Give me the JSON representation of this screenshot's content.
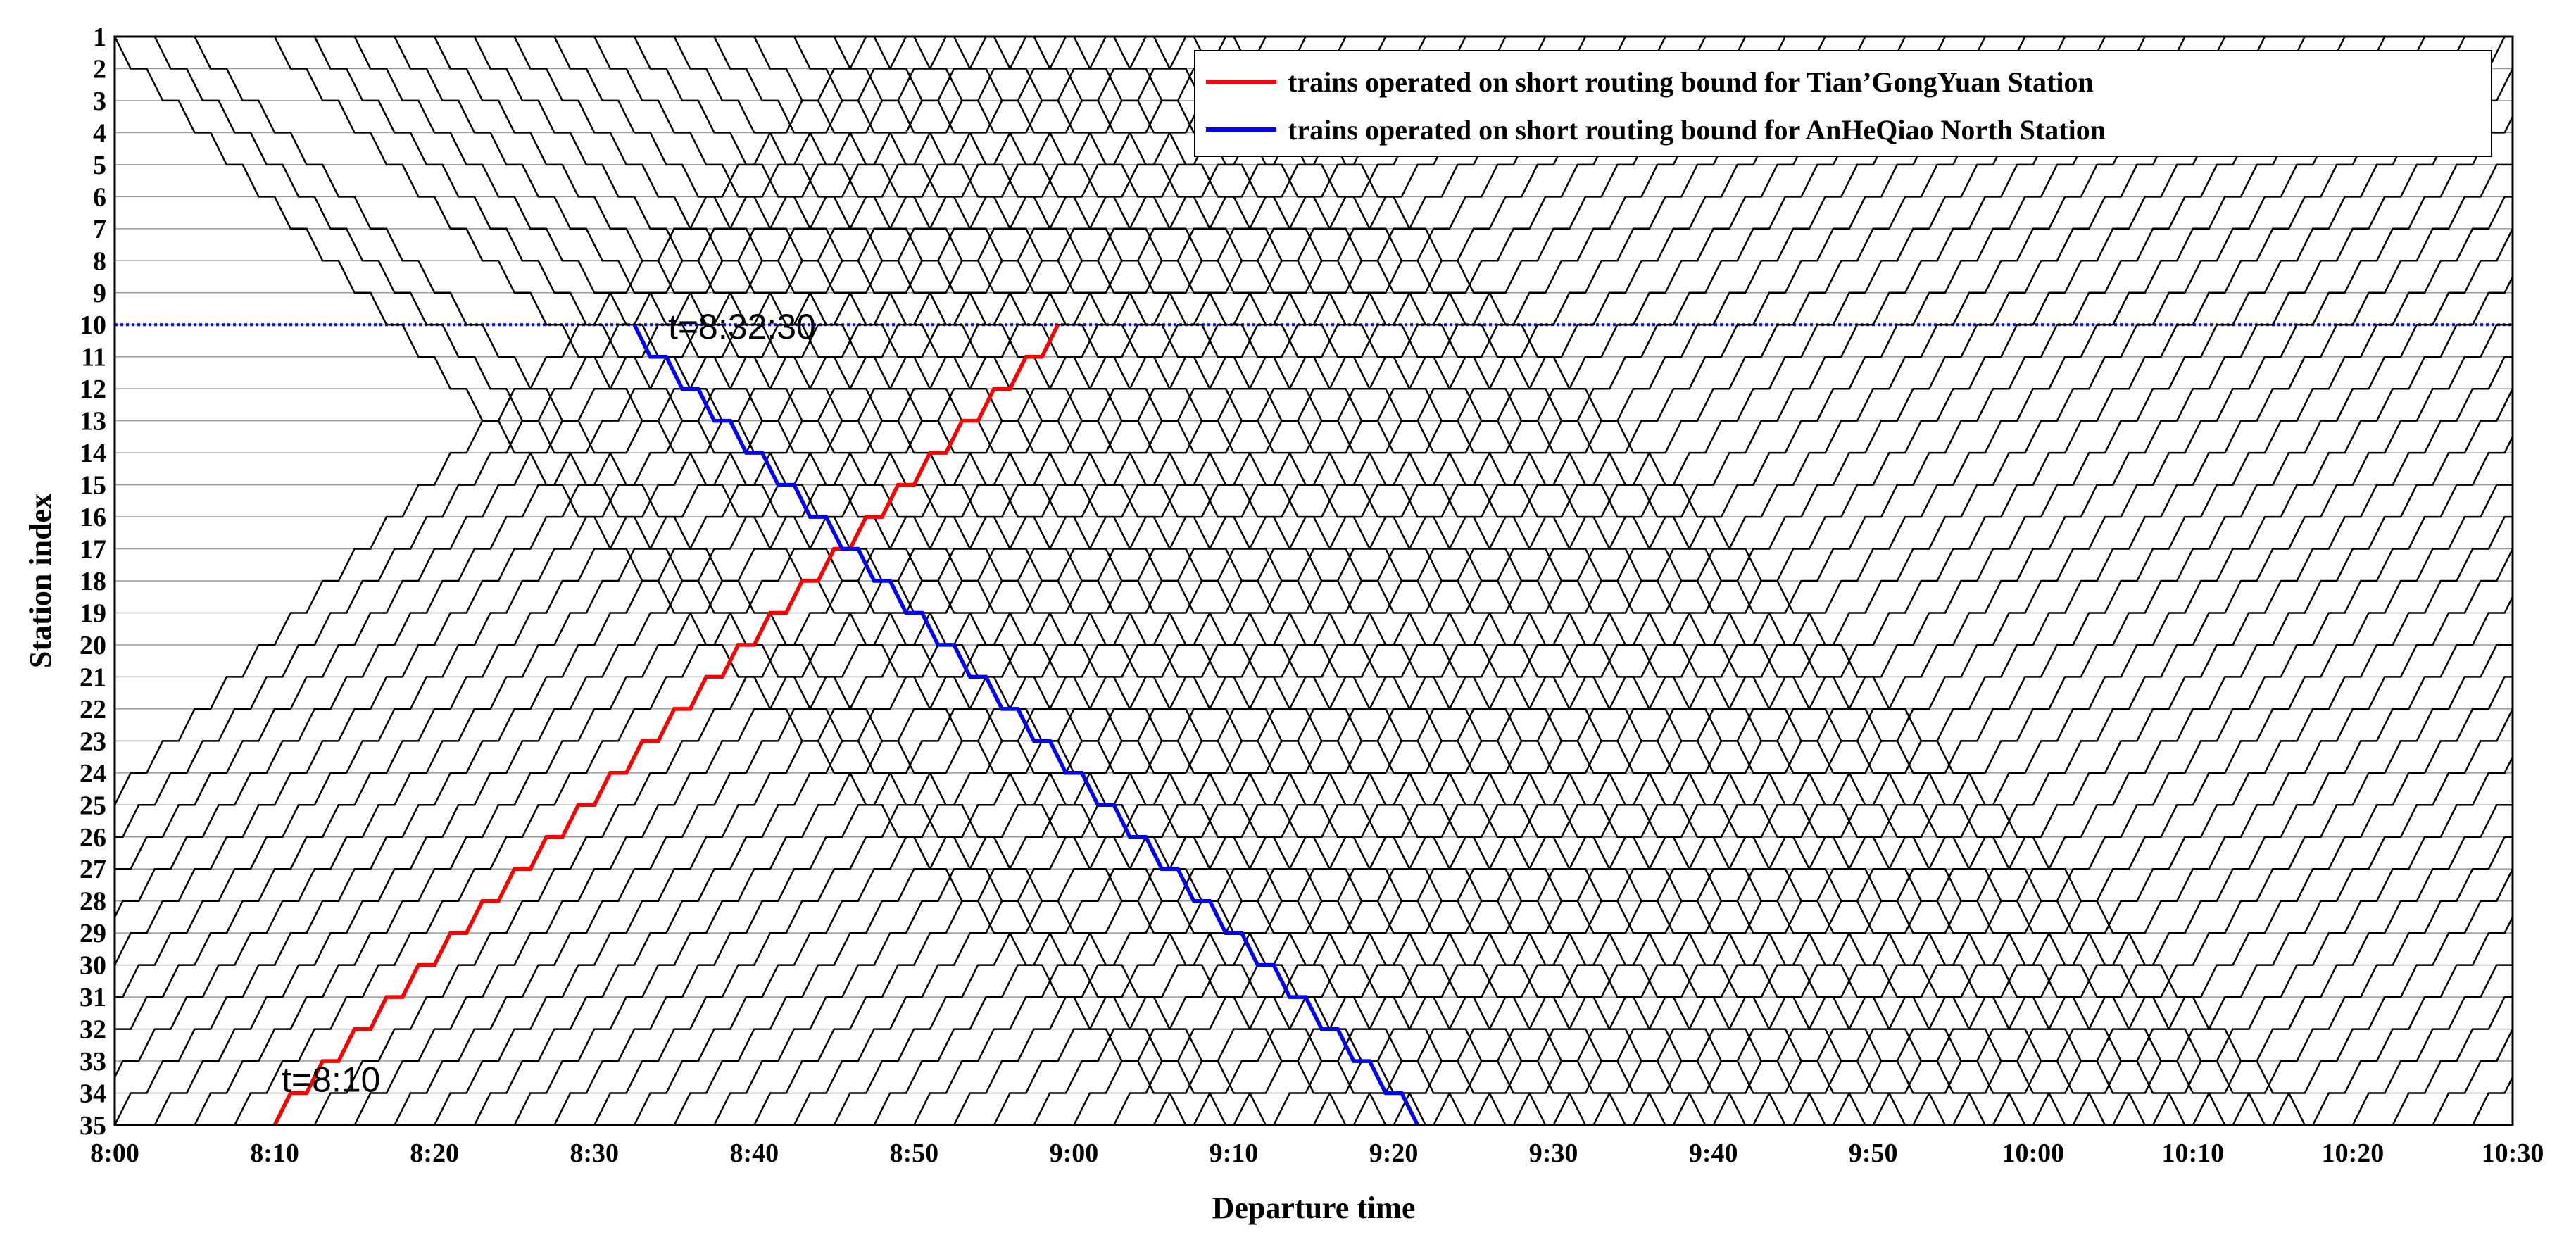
{
  "chart_data": {
    "type": "line",
    "title": "",
    "xlabel": "Departure time",
    "ylabel": "Station index",
    "x_ticks": [
      "8:00",
      "8:10",
      "8:20",
      "8:30",
      "8:40",
      "8:50",
      "9:00",
      "9:10",
      "9:20",
      "9:30",
      "9:40",
      "9:50",
      "10:00",
      "10:10",
      "10:20",
      "10:30"
    ],
    "xlim_min": [
      0,
      150
    ],
    "y_ticks": [
      "1",
      "2",
      "3",
      "4",
      "5",
      "6",
      "7",
      "8",
      "9",
      "10",
      "11",
      "12",
      "13",
      "14",
      "15",
      "16",
      "17",
      "18",
      "19",
      "20",
      "21",
      "22",
      "23",
      "24",
      "25",
      "26",
      "27",
      "28",
      "29",
      "30",
      "31",
      "32",
      "33",
      "34",
      "35"
    ],
    "ylim": [
      1,
      35
    ],
    "y_reversed": true,
    "grid": "horizontal",
    "legend_position": "top-right",
    "colors": {
      "down": "#000000",
      "up": "#000000",
      "red": "#ff0000",
      "blue": "#0000ff",
      "ref_line": "#0000ff"
    },
    "reference_line": {
      "station": 10,
      "style": "dotted"
    },
    "run_time_per_section_min": 2,
    "dwell_min": 1,
    "down_trains_from_station_1": {
      "first_departure": "8:00",
      "last_departure": "9:11",
      "headway_min": 2.5,
      "stations": [
        1,
        35
      ],
      "note_gap_after": "8:05"
    },
    "up_trains_from_station_35": {
      "first_departure": "8:10",
      "last_departure": "10:30",
      "headway_min": 2.5,
      "stations": [
        35,
        1
      ]
    },
    "series": [
      {
        "name": "trains operated on short routing bound for Tian’GongYuan Station",
        "color": "#ff0000",
        "from_station": 35,
        "to_station": 10,
        "depart": "8:10",
        "arrive": "9:11"
      },
      {
        "name": "trains operated on short routing bound for AnHeQiao North Station",
        "color": "#0000ff",
        "from_station": 10,
        "to_station": 35,
        "depart": "8:32:30",
        "arrive": "9:34"
      }
    ],
    "annotations": [
      {
        "text": "t=8:10"
      },
      {
        "text": "t=8:32:30"
      }
    ]
  }
}
